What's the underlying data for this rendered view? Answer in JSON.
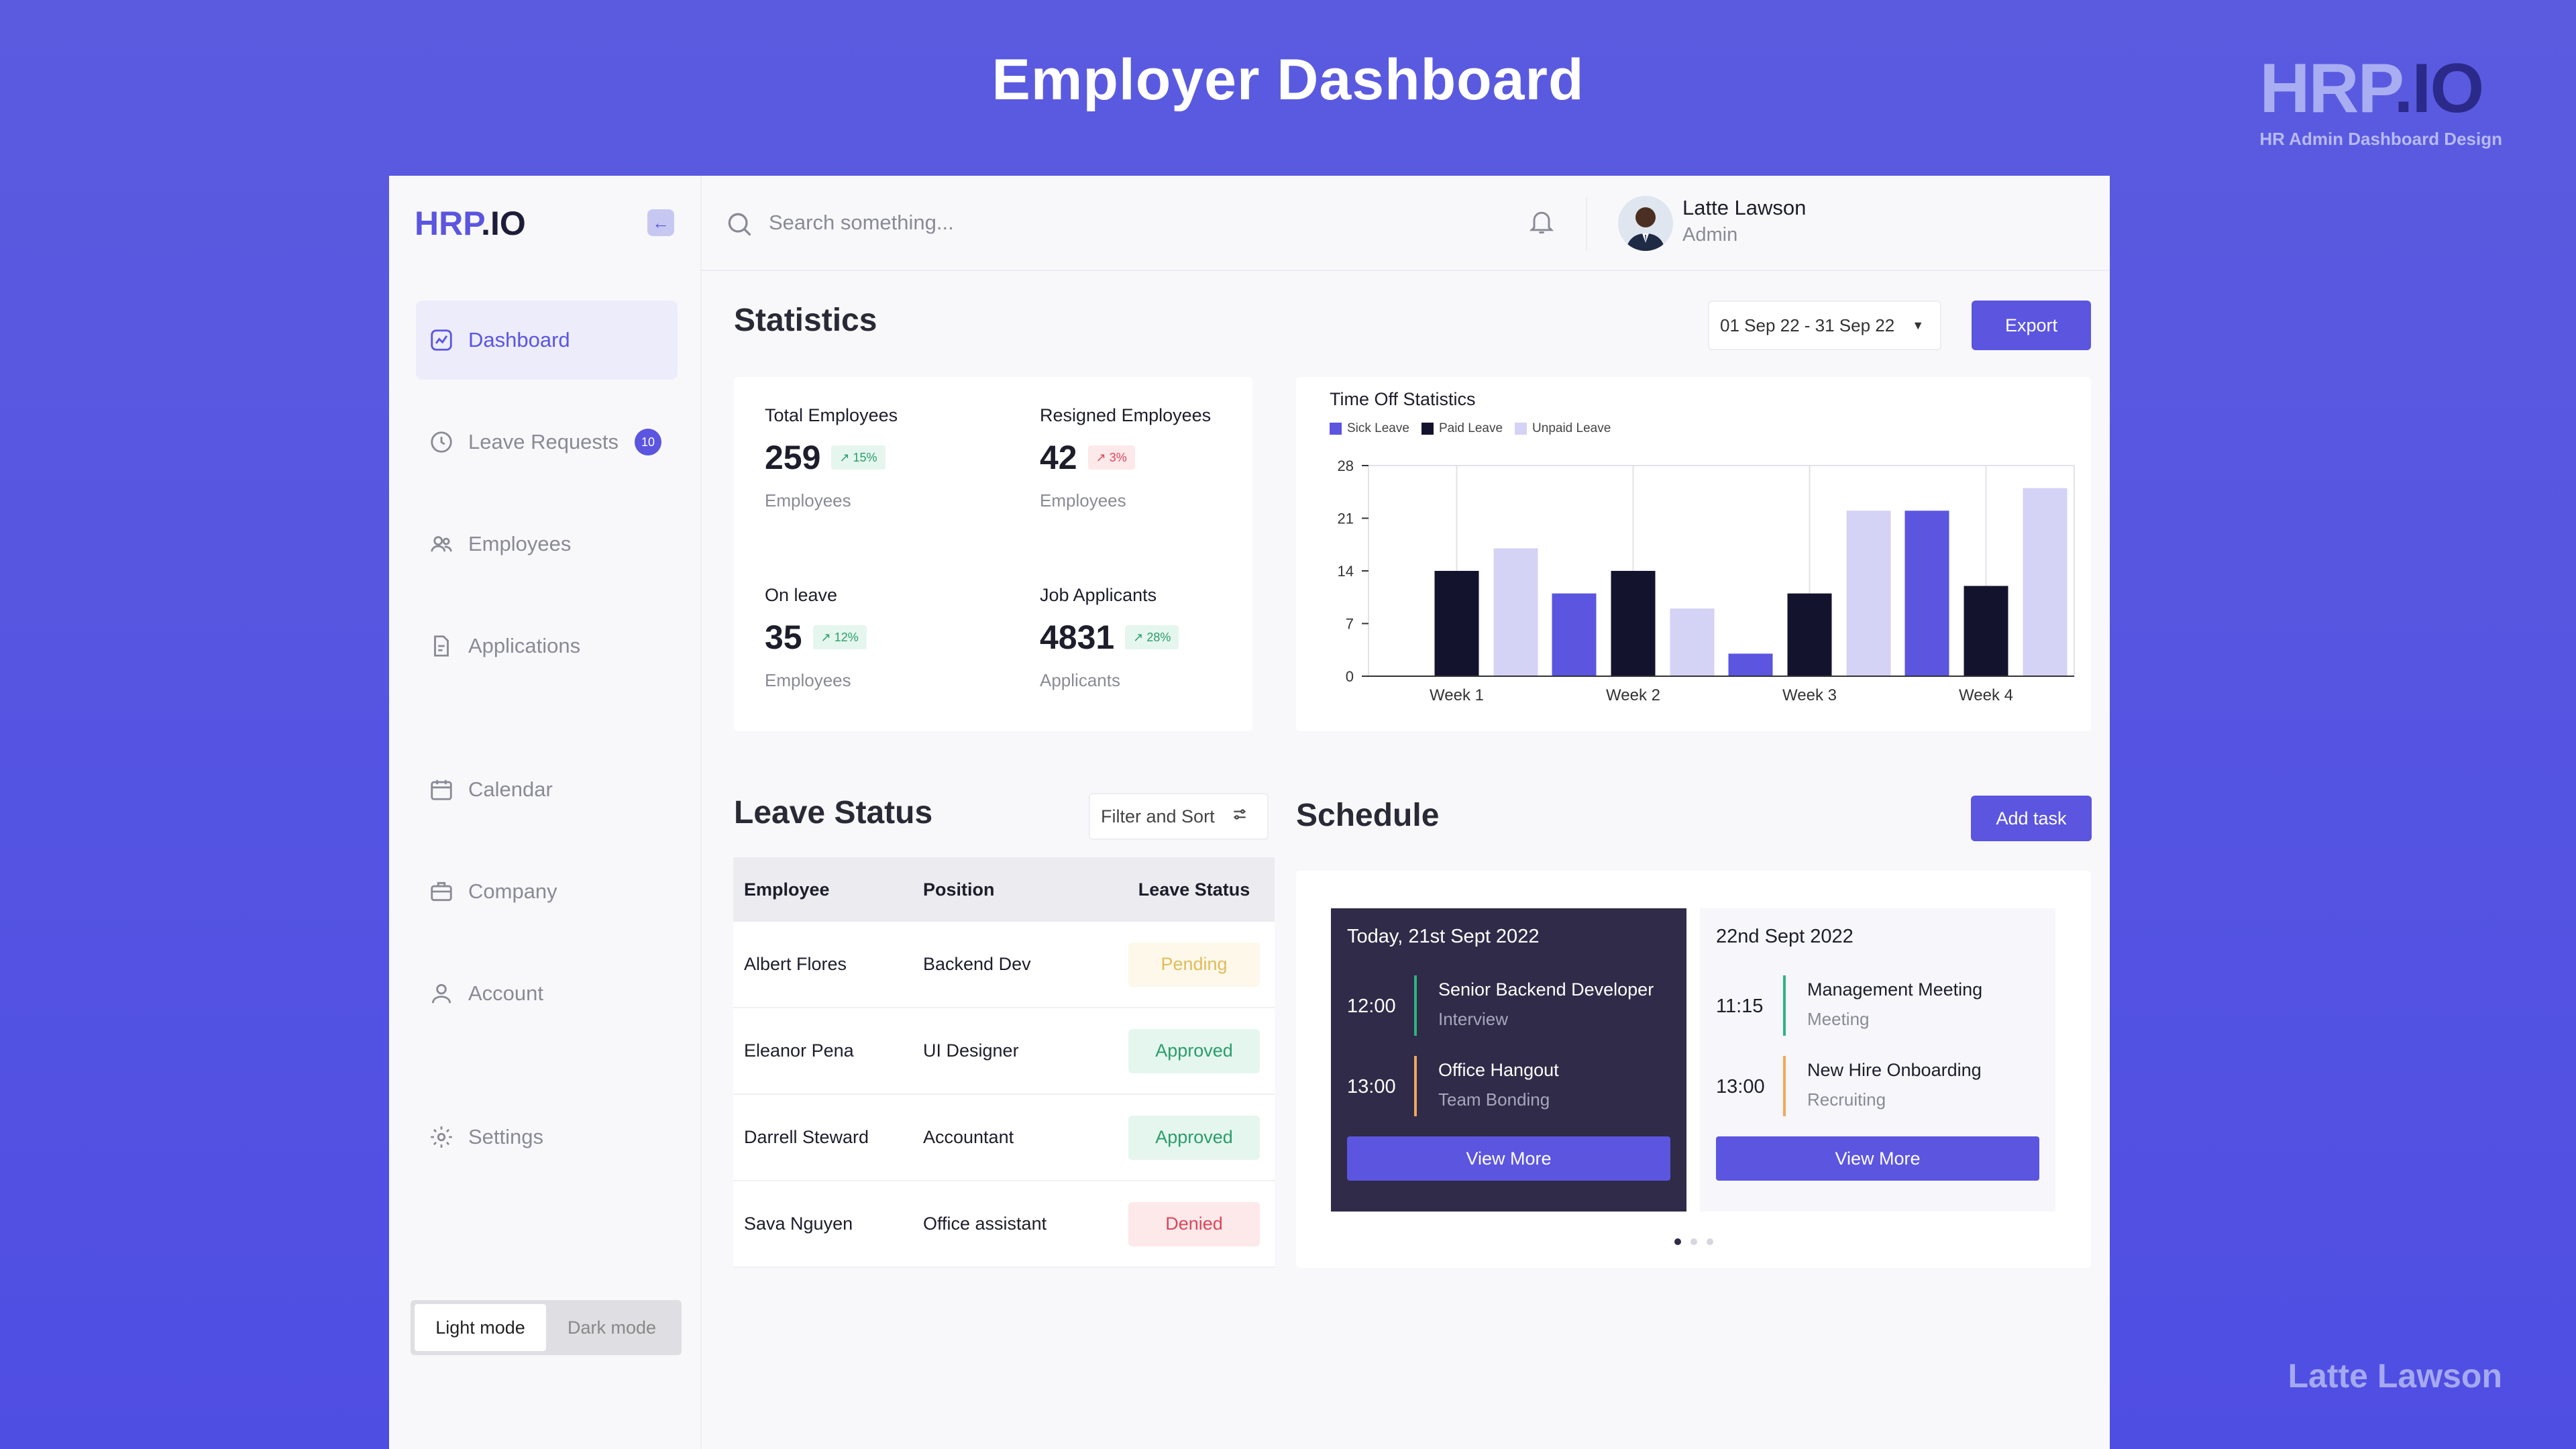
{
  "page": {
    "title": "Employer Dashboard",
    "brand_logo": "HRP.IO",
    "brand_subtitle": "HR Admin Dashboard Design",
    "author": "Latte Lawson"
  },
  "sidebar": {
    "logo_hrp": "HRP",
    "logo_io": ".IO",
    "items": [
      {
        "label": "Dashboard",
        "icon": "chart-icon",
        "active": true
      },
      {
        "label": "Leave Requests",
        "icon": "clock-icon",
        "badge": "10"
      },
      {
        "label": "Employees",
        "icon": "users-icon"
      },
      {
        "label": "Applications",
        "icon": "document-icon"
      },
      {
        "label": "Calendar",
        "icon": "calendar-icon"
      },
      {
        "label": "Company",
        "icon": "briefcase-icon"
      },
      {
        "label": "Account",
        "icon": "user-icon"
      },
      {
        "label": "Settings",
        "icon": "gear-icon"
      }
    ],
    "mode": {
      "light": "Light mode",
      "dark": "Dark mode",
      "selected": "Light mode"
    }
  },
  "topbar": {
    "search_placeholder": "Search something...",
    "user_name": "Latte Lawson",
    "user_role": "Admin"
  },
  "statistics": {
    "title": "Statistics",
    "date_range": "01 Sep 22 - 31 Sep 22",
    "export_label": "Export",
    "cards": [
      {
        "label": "Total Employees",
        "value": "259",
        "change": "15%",
        "trend": "up",
        "unit": "Employees"
      },
      {
        "label": "Resigned Employees",
        "value": "42",
        "change": "3%",
        "trend": "down",
        "unit": "Employees"
      },
      {
        "label": "On leave",
        "value": "35",
        "change": "12%",
        "trend": "up",
        "unit": "Employees"
      },
      {
        "label": "Job Applicants",
        "value": "4831",
        "change": "28%",
        "trend": "up",
        "unit": "Applicants"
      }
    ]
  },
  "chart_data": {
    "type": "bar",
    "title": "Time Off Statistics",
    "categories": [
      "Week 1",
      "Week 2",
      "Week 3",
      "Week 4"
    ],
    "series": [
      {
        "name": "Sick Leave",
        "color": "#5b55e0",
        "values": [
          0,
          11,
          3,
          22
        ]
      },
      {
        "name": "Paid Leave",
        "color": "#14132e",
        "values": [
          14,
          14,
          11,
          12
        ]
      },
      {
        "name": "Unpaid Leave",
        "color": "#d4d2f5",
        "values": [
          17,
          9,
          22,
          25
        ]
      }
    ],
    "yticks": [
      0,
      7,
      14,
      21,
      28
    ],
    "ylim": [
      0,
      28
    ],
    "grid": true,
    "legend": "top-left"
  },
  "leave_status": {
    "title": "Leave Status",
    "filter_label": "Filter and Sort",
    "headers": [
      "Employee",
      "Position",
      "Leave Status"
    ],
    "rows": [
      {
        "employee": "Albert Flores",
        "position": "Backend Dev",
        "status": "Pending"
      },
      {
        "employee": "Eleanor Pena",
        "position": "UI Designer",
        "status": "Approved"
      },
      {
        "employee": "Darrell Steward",
        "position": "Accountant",
        "status": "Approved"
      },
      {
        "employee": "Sava Nguyen",
        "position": "Office assistant",
        "status": "Denied"
      }
    ]
  },
  "schedule": {
    "title": "Schedule",
    "add_task_label": "Add task",
    "view_more_label": "View More",
    "days": [
      {
        "date": "Today, 21st Sept 2022",
        "events": [
          {
            "time": "12:00",
            "name": "Senior Backend Developer",
            "type": "Interview",
            "color": "#2fb383"
          },
          {
            "time": "13:00",
            "name": "Office Hangout",
            "type": "Team Bonding",
            "color": "#f0a85c"
          }
        ]
      },
      {
        "date": "22nd Sept 2022",
        "events": [
          {
            "time": "11:15",
            "name": "Management Meeting",
            "type": "Meeting",
            "color": "#2fb383"
          },
          {
            "time": "13:00",
            "name": "New Hire Onboarding",
            "type": "Recruiting",
            "color": "#f0a85c"
          }
        ]
      }
    ]
  }
}
